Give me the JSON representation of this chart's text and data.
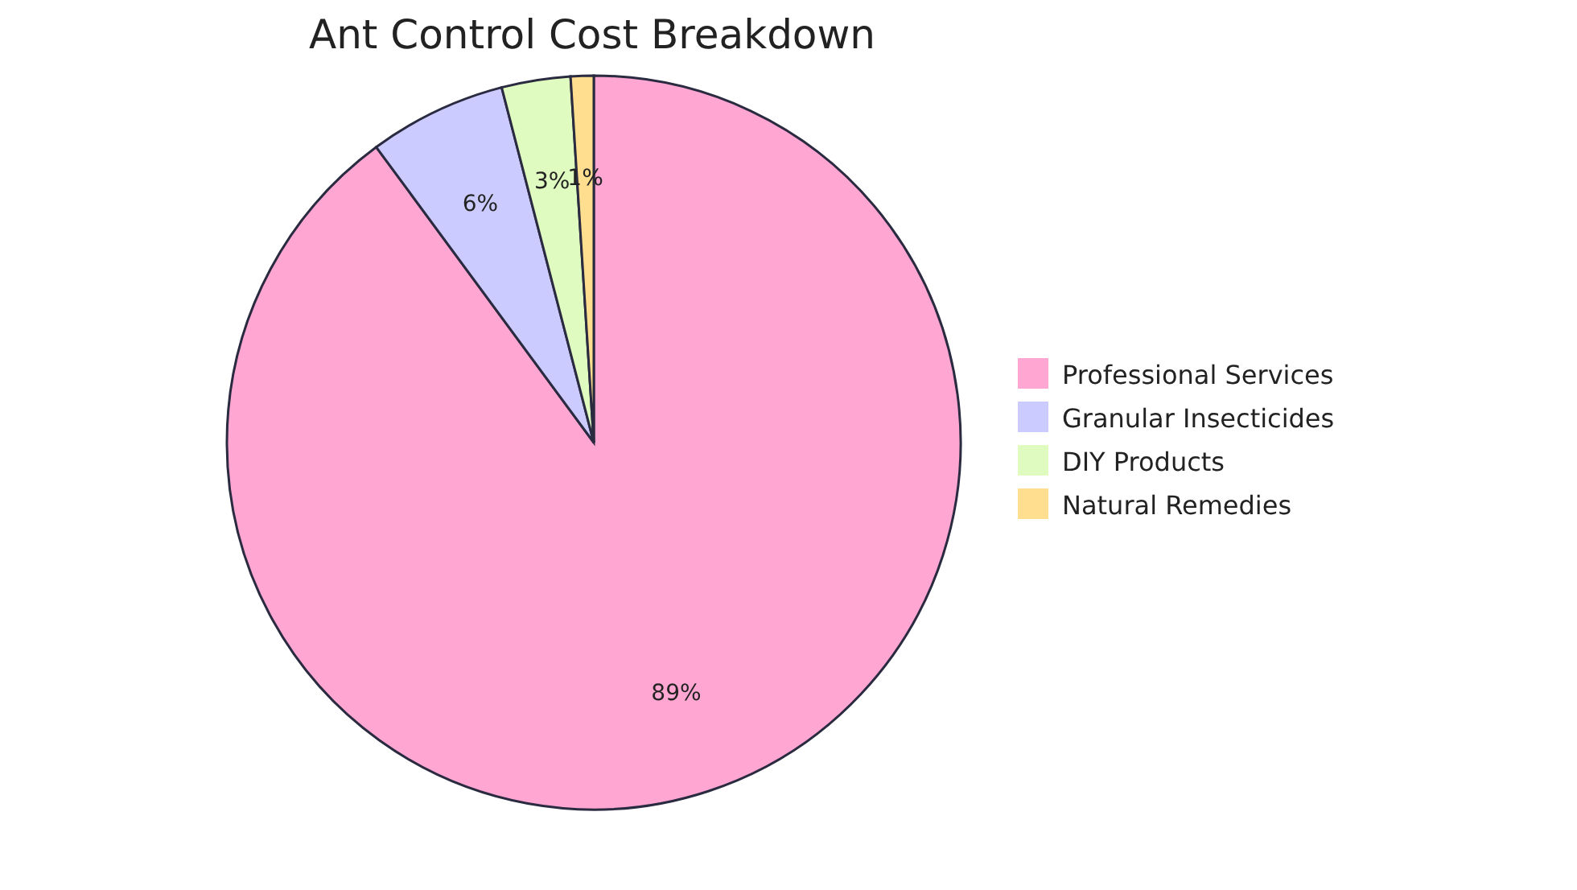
{
  "chart_data": {
    "type": "pie",
    "title": "Ant Control Cost Breakdown",
    "categories": [
      "Professional Services",
      "Granular Insecticides",
      "DIY Products",
      "Natural Remedies"
    ],
    "values": [
      89,
      6,
      3,
      1
    ],
    "colors": [
      "#ffa6d2",
      "#cbcbff",
      "#dffbbf",
      "#ffdf8f"
    ],
    "value_labels": [
      "89%",
      "6%",
      "3%",
      "1%"
    ],
    "legend": "right"
  }
}
